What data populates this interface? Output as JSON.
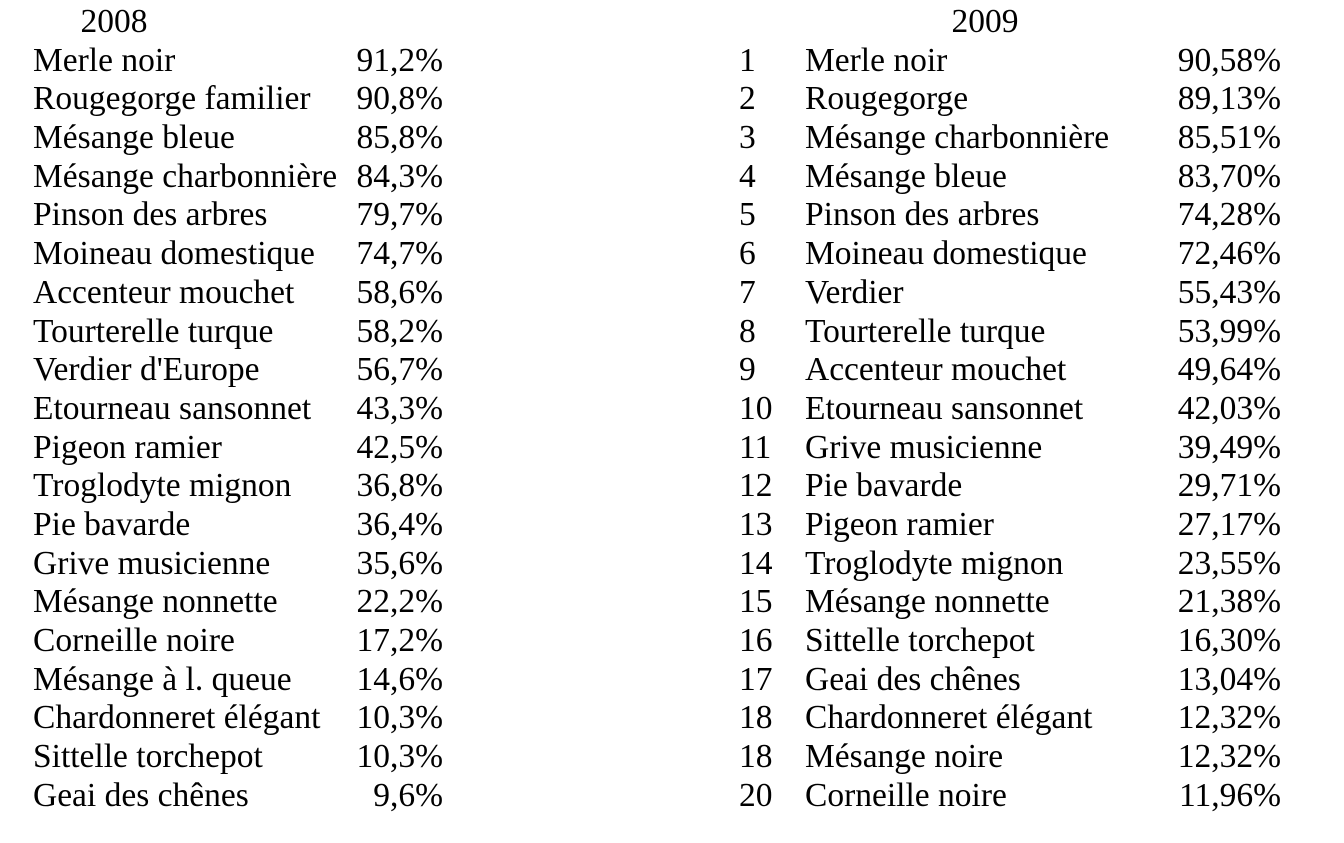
{
  "page": {
    "background": "#ffffff",
    "text_color": "#000000"
  },
  "left_table": {
    "year": "2008",
    "rows": [
      {
        "name": "Merle noir",
        "pct": "91,2%"
      },
      {
        "name": "Rougegorge familier",
        "pct": "90,8%"
      },
      {
        "name": "Mésange bleue",
        "pct": "85,8%"
      },
      {
        "name": "Mésange charbonnière",
        "pct": "84,3%"
      },
      {
        "name": "Pinson des arbres",
        "pct": "79,7%"
      },
      {
        "name": "Moineau domestique",
        "pct": "74,7%"
      },
      {
        "name": "Accenteur mouchet",
        "pct": "58,6%"
      },
      {
        "name": "Tourterelle turque",
        "pct": "58,2%"
      },
      {
        "name": "Verdier d'Europe",
        "pct": "56,7%"
      },
      {
        "name": "Etourneau sansonnet",
        "pct": "43,3%"
      },
      {
        "name": "Pigeon ramier",
        "pct": "42,5%"
      },
      {
        "name": "Troglodyte mignon",
        "pct": "36,8%"
      },
      {
        "name": "Pie bavarde",
        "pct": "36,4%"
      },
      {
        "name": "Grive musicienne",
        "pct": "35,6%"
      },
      {
        "name": "Mésange nonnette",
        "pct": "22,2%"
      },
      {
        "name": "Corneille noire",
        "pct": "17,2%"
      },
      {
        "name": "Mésange à l. queue",
        "pct": "14,6%"
      },
      {
        "name": "Chardonneret élégant",
        "pct": "10,3%"
      },
      {
        "name": "Sittelle torchepot",
        "pct": "10,3%"
      },
      {
        "name": "Geai des chênes",
        "pct": "9,6%"
      }
    ]
  },
  "right_table": {
    "year": "2009",
    "rows": [
      {
        "rank": "1",
        "name": "Merle noir",
        "pct": "90,58%"
      },
      {
        "rank": "2",
        "name": "Rougegorge",
        "pct": "89,13%"
      },
      {
        "rank": "3",
        "name": "Mésange charbonnière",
        "pct": "85,51%"
      },
      {
        "rank": "4",
        "name": "Mésange bleue",
        "pct": "83,70%"
      },
      {
        "rank": "5",
        "name": "Pinson des arbres",
        "pct": "74,28%"
      },
      {
        "rank": "6",
        "name": "Moineau domestique",
        "pct": "72,46%"
      },
      {
        "rank": "7",
        "name": "Verdier",
        "pct": "55,43%"
      },
      {
        "rank": "8",
        "name": "Tourterelle turque",
        "pct": "53,99%"
      },
      {
        "rank": "9",
        "name": "Accenteur mouchet",
        "pct": "49,64%"
      },
      {
        "rank": "10",
        "name": "Etourneau sansonnet",
        "pct": "42,03%"
      },
      {
        "rank": "11",
        "name": "Grive musicienne",
        "pct": "39,49%"
      },
      {
        "rank": "12",
        "name": "Pie bavarde",
        "pct": "29,71%"
      },
      {
        "rank": "13",
        "name": "Pigeon ramier",
        "pct": "27,17%"
      },
      {
        "rank": "14",
        "name": "Troglodyte mignon",
        "pct": "23,55%"
      },
      {
        "rank": "15",
        "name": "Mésange nonnette",
        "pct": "21,38%"
      },
      {
        "rank": "16",
        "name": "Sittelle torchepot",
        "pct": "16,30%"
      },
      {
        "rank": "17",
        "name": "Geai des chênes",
        "pct": "13,04%"
      },
      {
        "rank": "18",
        "name": "Chardonneret élégant",
        "pct": "12,32%"
      },
      {
        "rank": "18",
        "name": "Mésange noire",
        "pct": "12,32%"
      },
      {
        "rank": "20",
        "name": "Corneille noire",
        "pct": "11,96%"
      }
    ]
  }
}
